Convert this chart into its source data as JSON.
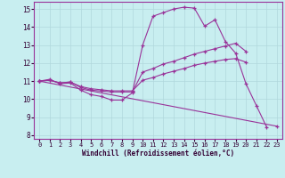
{
  "background_color": "#c8eef0",
  "grid_color": "#b0d8dc",
  "line_color": "#993399",
  "xlabel": "Windchill (Refroidissement éolien,°C)",
  "xlim": [
    -0.5,
    23.5
  ],
  "ylim": [
    7.8,
    15.4
  ],
  "yticks": [
    8,
    9,
    10,
    11,
    12,
    13,
    14,
    15
  ],
  "xticks": [
    0,
    1,
    2,
    3,
    4,
    5,
    6,
    7,
    8,
    9,
    10,
    11,
    12,
    13,
    14,
    15,
    16,
    17,
    18,
    19,
    20,
    21,
    22,
    23
  ],
  "series": [
    {
      "x": [
        0,
        1,
        2,
        3,
        4,
        5,
        6,
        7,
        8,
        9,
        10,
        11,
        12,
        13,
        14,
        15,
        16,
        17,
        18,
        19,
        20,
        21,
        22
      ],
      "y": [
        11.0,
        11.1,
        10.85,
        10.9,
        10.5,
        10.25,
        10.15,
        9.95,
        9.95,
        10.35,
        13.0,
        14.6,
        14.8,
        15.0,
        15.1,
        15.05,
        14.05,
        14.4,
        13.2,
        12.55,
        10.85,
        9.65,
        8.45
      ]
    },
    {
      "x": [
        0,
        1,
        2,
        3,
        4,
        5,
        6,
        7,
        8,
        9,
        10,
        11,
        12,
        13,
        14,
        15,
        16,
        17,
        18,
        19,
        20
      ],
      "y": [
        11.0,
        11.05,
        10.9,
        10.95,
        10.65,
        10.5,
        10.45,
        10.4,
        10.4,
        10.4,
        11.5,
        11.7,
        11.95,
        12.1,
        12.3,
        12.5,
        12.65,
        12.8,
        12.95,
        13.1,
        12.65
      ]
    },
    {
      "x": [
        0,
        1,
        2,
        3,
        4,
        5,
        6,
        7,
        8,
        9,
        10,
        11,
        12,
        13,
        14,
        15,
        16,
        17,
        18,
        19,
        20
      ],
      "y": [
        11.0,
        11.05,
        10.9,
        10.95,
        10.7,
        10.58,
        10.52,
        10.46,
        10.46,
        10.46,
        11.05,
        11.2,
        11.4,
        11.55,
        11.7,
        11.88,
        12.0,
        12.1,
        12.2,
        12.25,
        12.05
      ]
    },
    {
      "x": [
        0,
        23
      ],
      "y": [
        11.0,
        8.5
      ]
    }
  ]
}
